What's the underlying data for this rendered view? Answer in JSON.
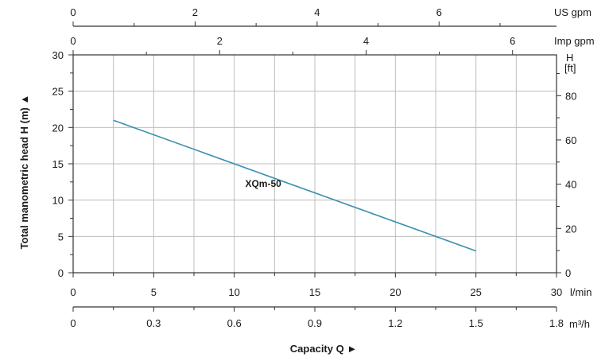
{
  "chart_data": {
    "type": "line",
    "series": [
      {
        "name": "XQm-50",
        "color": "#3a8fb0",
        "x": [
          2.5,
          25
        ],
        "y": [
          21,
          3
        ]
      }
    ],
    "xlim": [
      0,
      30
    ],
    "ylim": [
      0,
      30
    ],
    "grid": true,
    "main_x_axis": {
      "unit": "l/min",
      "ticks": [
        0,
        5,
        10,
        15,
        20,
        25,
        30
      ],
      "minor_step": 2.5
    },
    "m3h_axis": {
      "unit": "m³/h",
      "ticks": [
        "0",
        "0.3",
        "0.6",
        "0.9",
        "1.2",
        "1.5",
        "1.8"
      ],
      "range": [
        0,
        1.8
      ]
    },
    "us_gpm_axis": {
      "unit": "US gpm",
      "ticks": [
        0,
        2,
        4,
        6
      ],
      "per_lmin": 0.2642,
      "minor_step": 1
    },
    "imp_gpm_axis": {
      "unit": "Imp gpm",
      "ticks": [
        0,
        2,
        4,
        6
      ],
      "per_lmin": 0.22,
      "minor_step": 1
    },
    "left_y_axis": {
      "ticks": [
        0,
        5,
        10,
        15,
        20,
        25,
        30
      ],
      "minor_step": 2.5
    },
    "right_y_axis": {
      "unit": "H",
      "unit2": "[ft]",
      "ticks": [
        0,
        20,
        40,
        60,
        80
      ],
      "per_m": 3.2808,
      "minor_step": 10
    },
    "ylabel": "Total manometric head H (m)  ▲",
    "xlabel": "Capacity Q   ►"
  }
}
